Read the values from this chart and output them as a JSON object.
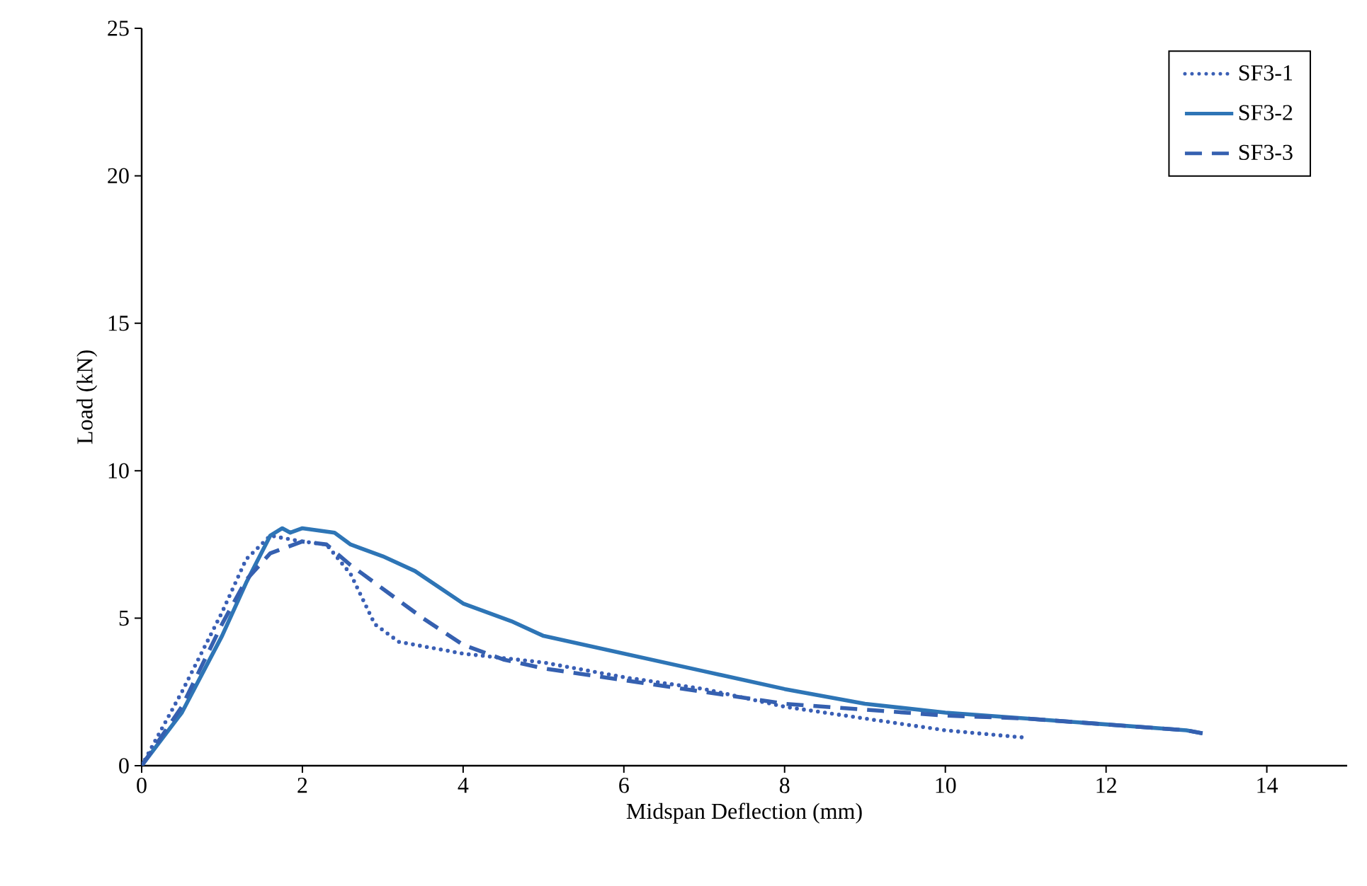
{
  "chart_data": {
    "type": "line",
    "xlabel": "Midspan Deflection (mm)",
    "ylabel": "Load (kN)",
    "xlim": [
      0,
      15
    ],
    "xticks": [
      0,
      2,
      4,
      6,
      8,
      10,
      12,
      14
    ],
    "ylim": [
      0,
      25
    ],
    "yticks": [
      0,
      5,
      10,
      15,
      20,
      25
    ],
    "grid": false,
    "legend": "top right",
    "marker": "none",
    "series": [
      {
        "name": "SF3-1",
        "color": "#3a5fb5",
        "line_style": "dotted",
        "x": [
          0,
          0.5,
          1,
          1.3,
          1.6,
          2,
          2.3,
          2.6,
          2.9,
          3.2,
          4,
          5,
          6,
          7,
          8,
          9,
          10,
          11
        ],
        "values": [
          0,
          2.5,
          5.2,
          7,
          7.8,
          7.6,
          7.5,
          6.5,
          4.8,
          4.2,
          3.8,
          3.5,
          3.0,
          2.6,
          2.0,
          1.6,
          1.2,
          0.95
        ]
      },
      {
        "name": "SF3-2",
        "color": "#2e75b6",
        "line_style": "solid",
        "x": [
          0,
          0.5,
          1,
          1.3,
          1.6,
          1.75,
          1.85,
          2,
          2.4,
          2.6,
          3,
          3.4,
          4,
          4.6,
          5,
          6,
          7,
          8,
          9,
          10,
          11,
          12,
          13,
          13.2
        ],
        "values": [
          0,
          1.8,
          4.4,
          6.2,
          7.8,
          8.05,
          7.9,
          8.05,
          7.9,
          7.5,
          7.1,
          6.6,
          5.5,
          4.9,
          4.4,
          3.8,
          3.2,
          2.6,
          2.1,
          1.8,
          1.6,
          1.4,
          1.2,
          1.1
        ]
      },
      {
        "name": "SF3-3",
        "color": "#3560b0",
        "line_style": "dashed",
        "x": [
          0,
          0.5,
          1,
          1.3,
          1.6,
          2,
          2.3,
          2.6,
          3,
          3.5,
          4,
          4.5,
          5,
          6,
          7,
          8,
          9,
          10,
          11,
          12,
          13,
          13.2
        ],
        "values": [
          0,
          2,
          4.8,
          6.3,
          7.2,
          7.6,
          7.5,
          6.8,
          6,
          5,
          4.1,
          3.6,
          3.3,
          2.9,
          2.5,
          2.1,
          1.9,
          1.7,
          1.6,
          1.4,
          1.2,
          1.1
        ]
      }
    ]
  }
}
